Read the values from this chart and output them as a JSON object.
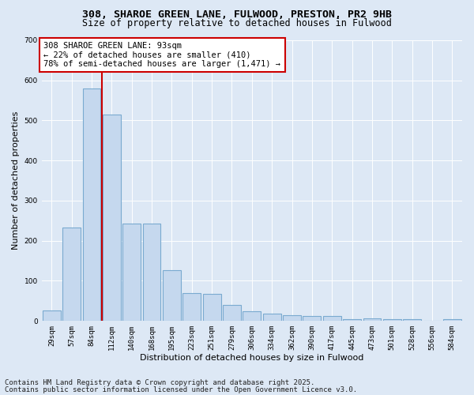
{
  "title_line1": "308, SHAROE GREEN LANE, FULWOOD, PRESTON, PR2 9HB",
  "title_line2": "Size of property relative to detached houses in Fulwood",
  "xlabel": "Distribution of detached houses by size in Fulwood",
  "ylabel": "Number of detached properties",
  "categories": [
    "29sqm",
    "57sqm",
    "84sqm",
    "112sqm",
    "140sqm",
    "168sqm",
    "195sqm",
    "223sqm",
    "251sqm",
    "279sqm",
    "306sqm",
    "334sqm",
    "362sqm",
    "390sqm",
    "417sqm",
    "445sqm",
    "473sqm",
    "501sqm",
    "528sqm",
    "556sqm",
    "584sqm"
  ],
  "values": [
    27,
    232,
    580,
    515,
    243,
    243,
    127,
    70,
    68,
    40,
    25,
    18,
    15,
    12,
    12,
    5,
    7,
    5,
    4,
    1,
    5
  ],
  "bar_color": "#c5d8ee",
  "bar_edge_color": "#7aaad0",
  "vline_bar_index": 2,
  "vline_color": "#cc0000",
  "annotation_text": "308 SHAROE GREEN LANE: 93sqm\n← 22% of detached houses are smaller (410)\n78% of semi-detached houses are larger (1,471) →",
  "annotation_box_color": "#ffffff",
  "annotation_box_edge": "#cc0000",
  "ylim": [
    0,
    700
  ],
  "yticks": [
    0,
    100,
    200,
    300,
    400,
    500,
    600,
    700
  ],
  "footnote1": "Contains HM Land Registry data © Crown copyright and database right 2025.",
  "footnote2": "Contains public sector information licensed under the Open Government Licence v3.0.",
  "bg_color": "#dde8f5",
  "plot_bg_color": "#dde8f5",
  "title_fontsize": 9.5,
  "subtitle_fontsize": 8.5,
  "axis_label_fontsize": 8,
  "tick_fontsize": 6.5,
  "annotation_fontsize": 7.5,
  "footnote_fontsize": 6.5
}
